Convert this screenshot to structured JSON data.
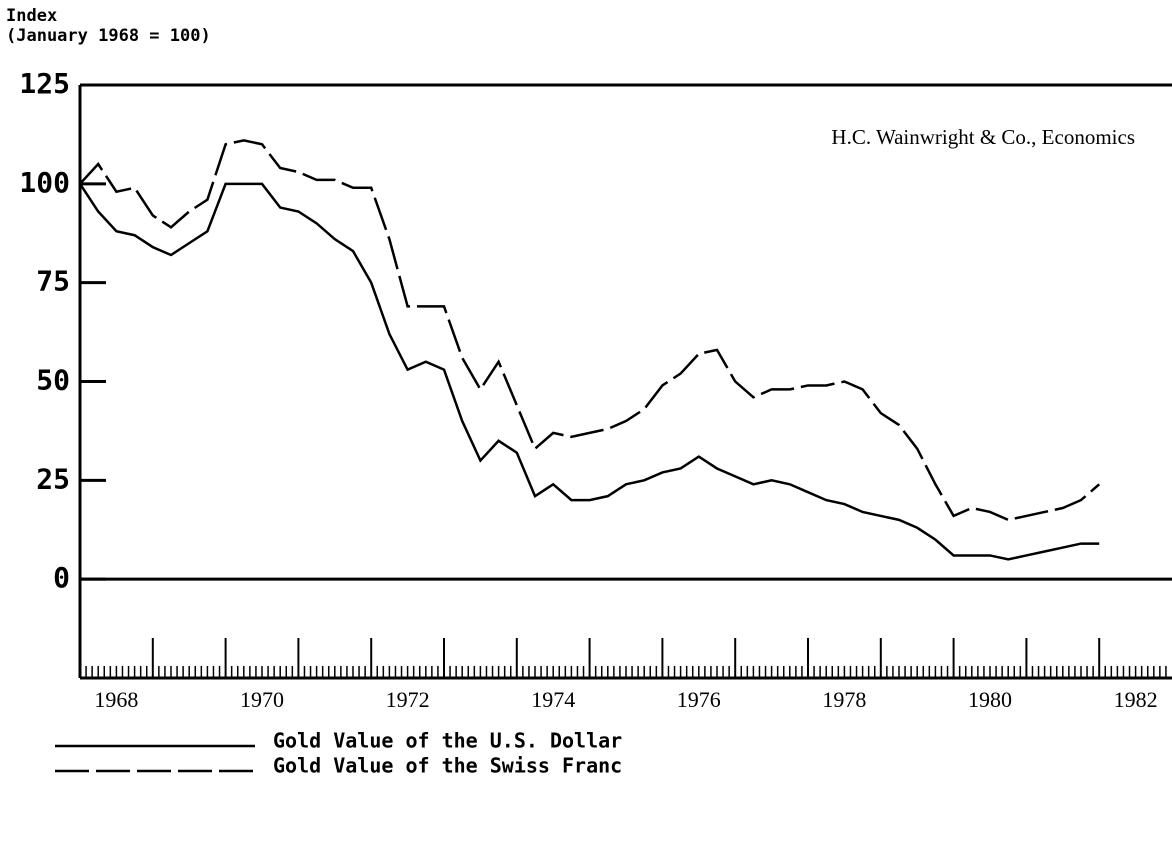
{
  "chart_data": {
    "type": "line",
    "ylabel": "Index",
    "ylabel_note": "(January 1968 = 100)",
    "annotation": "H.C. Wainwright & Co., Economics",
    "x": [
      1968.0,
      1968.25,
      1968.5,
      1968.75,
      1969.0,
      1969.25,
      1969.5,
      1969.75,
      1970.0,
      1970.25,
      1970.5,
      1970.75,
      1971.0,
      1971.25,
      1971.5,
      1971.75,
      1972.0,
      1972.25,
      1972.5,
      1972.75,
      1973.0,
      1973.25,
      1973.5,
      1973.75,
      1974.0,
      1974.25,
      1974.5,
      1974.75,
      1975.0,
      1975.25,
      1975.5,
      1975.75,
      1976.0,
      1976.25,
      1976.5,
      1976.75,
      1977.0,
      1977.25,
      1977.5,
      1977.75,
      1978.0,
      1978.25,
      1978.5,
      1978.75,
      1979.0,
      1979.25,
      1979.5,
      1979.75,
      1980.0,
      1980.25,
      1980.5,
      1980.75,
      1981.0,
      1981.25,
      1981.5,
      1981.75,
      1982.0
    ],
    "series": [
      {
        "name": "Gold Value of the U.S. Dollar",
        "color": "#000000",
        "linestyle": "solid",
        "values": [
          100,
          93,
          88,
          87,
          84,
          82,
          85,
          88,
          100,
          100,
          100,
          94,
          93,
          90,
          86,
          83,
          75,
          62,
          53,
          55,
          53,
          40,
          30,
          35,
          32,
          21,
          24,
          20,
          20,
          21,
          24,
          25,
          27,
          28,
          31,
          28,
          26,
          24,
          25,
          24,
          22,
          20,
          19,
          17,
          16,
          15,
          13,
          10,
          6,
          6,
          6,
          5,
          6,
          7,
          8,
          9,
          9
        ]
      },
      {
        "name": "Gold Value of the Swiss Franc",
        "color": "#000000",
        "linestyle": "dashed",
        "values": [
          100,
          105,
          98,
          99,
          92,
          89,
          93,
          96,
          110,
          111,
          110,
          104,
          103,
          101,
          101,
          99,
          99,
          86,
          69,
          69,
          69,
          56,
          48,
          55,
          44,
          33,
          37,
          36,
          37,
          38,
          40,
          43,
          49,
          52,
          57,
          58,
          50,
          46,
          48,
          48,
          49,
          49,
          50,
          48,
          42,
          39,
          33,
          24,
          16,
          18,
          17,
          15,
          16,
          17,
          18,
          20,
          24
        ]
      }
    ],
    "xlim": [
      1968,
      1983
    ],
    "ylim": [
      -25,
      125
    ],
    "yticks": [
      0,
      25,
      50,
      75,
      100,
      125
    ],
    "xticks": [
      {
        "value": 1968.5,
        "label": "1968"
      },
      {
        "value": 1970.5,
        "label": "1970"
      },
      {
        "value": 1972.5,
        "label": "1972"
      },
      {
        "value": 1974.5,
        "label": "1974"
      },
      {
        "value": 1976.5,
        "label": "1976"
      },
      {
        "value": 1978.5,
        "label": "1978"
      },
      {
        "value": 1980.5,
        "label": "1980"
      },
      {
        "value": 1982.5,
        "label": "1982"
      }
    ]
  }
}
